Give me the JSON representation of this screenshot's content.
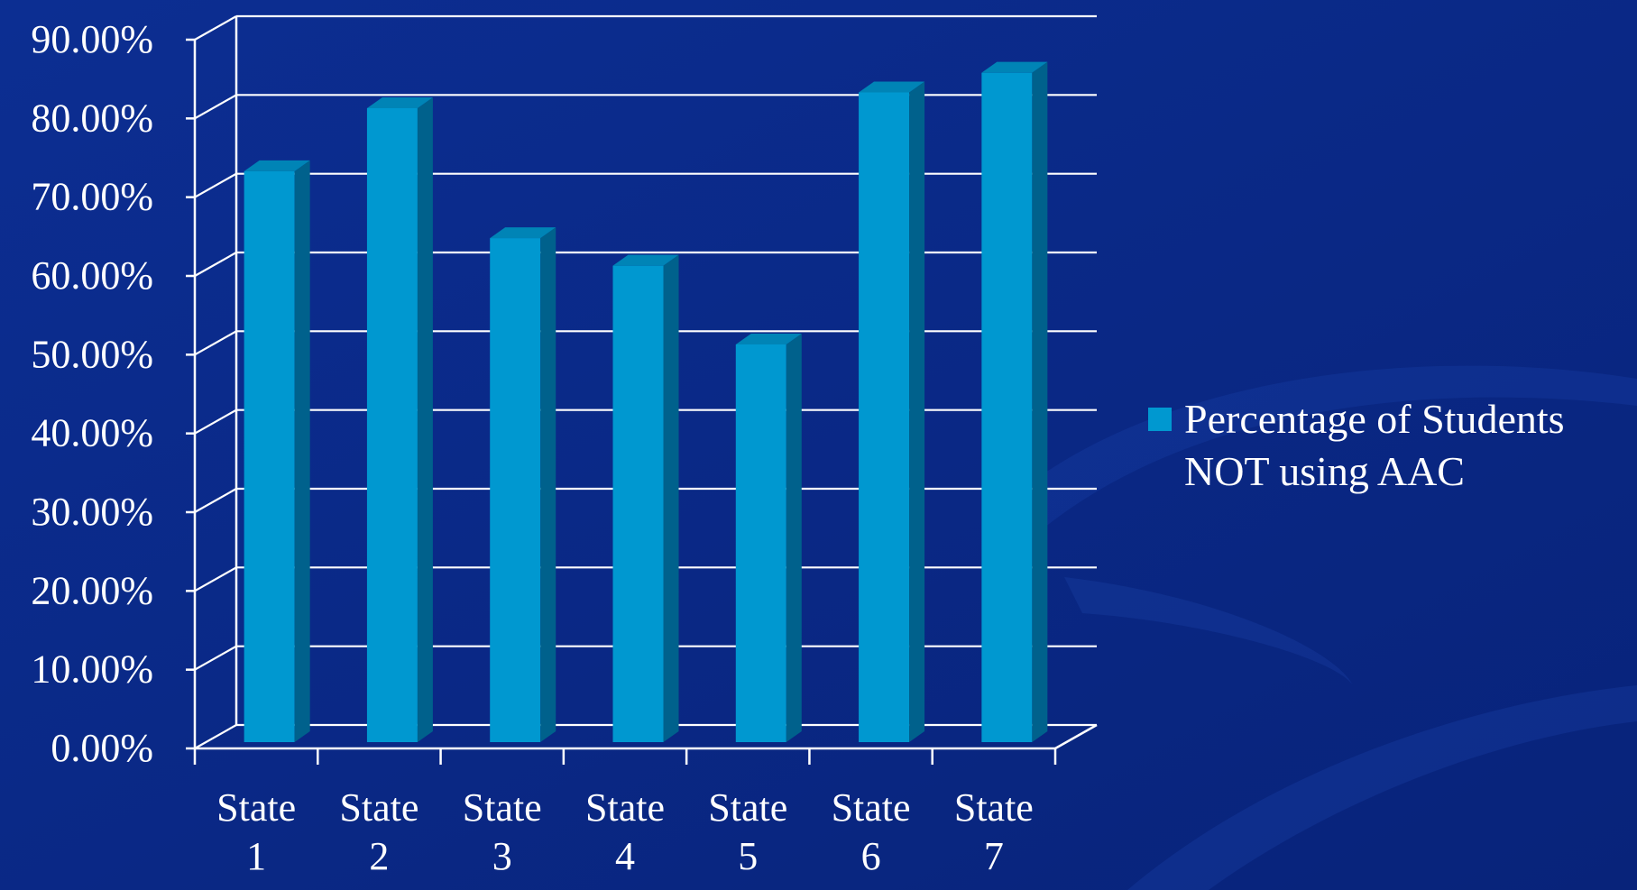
{
  "chart_data": {
    "type": "bar",
    "categories": [
      [
        "State",
        "1"
      ],
      [
        "State",
        "2"
      ],
      [
        "State",
        "3"
      ],
      [
        "State",
        "4"
      ],
      [
        "State",
        "5"
      ],
      [
        "State",
        "6"
      ],
      [
        "State",
        "7"
      ]
    ],
    "series": [
      {
        "name": "Percentage of Students NOT using AAC",
        "name_lines": [
          "Percentage of Students",
          "NOT using AAC"
        ],
        "values": [
          72.5,
          80.5,
          64.0,
          60.5,
          50.5,
          82.5,
          85.0
        ],
        "color": "#0098d0"
      }
    ],
    "yticks": [
      "0.00%",
      "10.00%",
      "20.00%",
      "30.00%",
      "40.00%",
      "50.00%",
      "60.00%",
      "70.00%",
      "80.00%",
      "90.00%"
    ],
    "ylim": [
      0,
      90
    ],
    "ystep": 10,
    "three_d": true,
    "grid": true,
    "legend": "right",
    "colors": {
      "background": "#0a2a8a",
      "bar_front": "#0098d0",
      "bar_top": "#0084b6",
      "bar_side": "#00618c",
      "grid": "#ffffff",
      "text": "#ffffff"
    }
  }
}
